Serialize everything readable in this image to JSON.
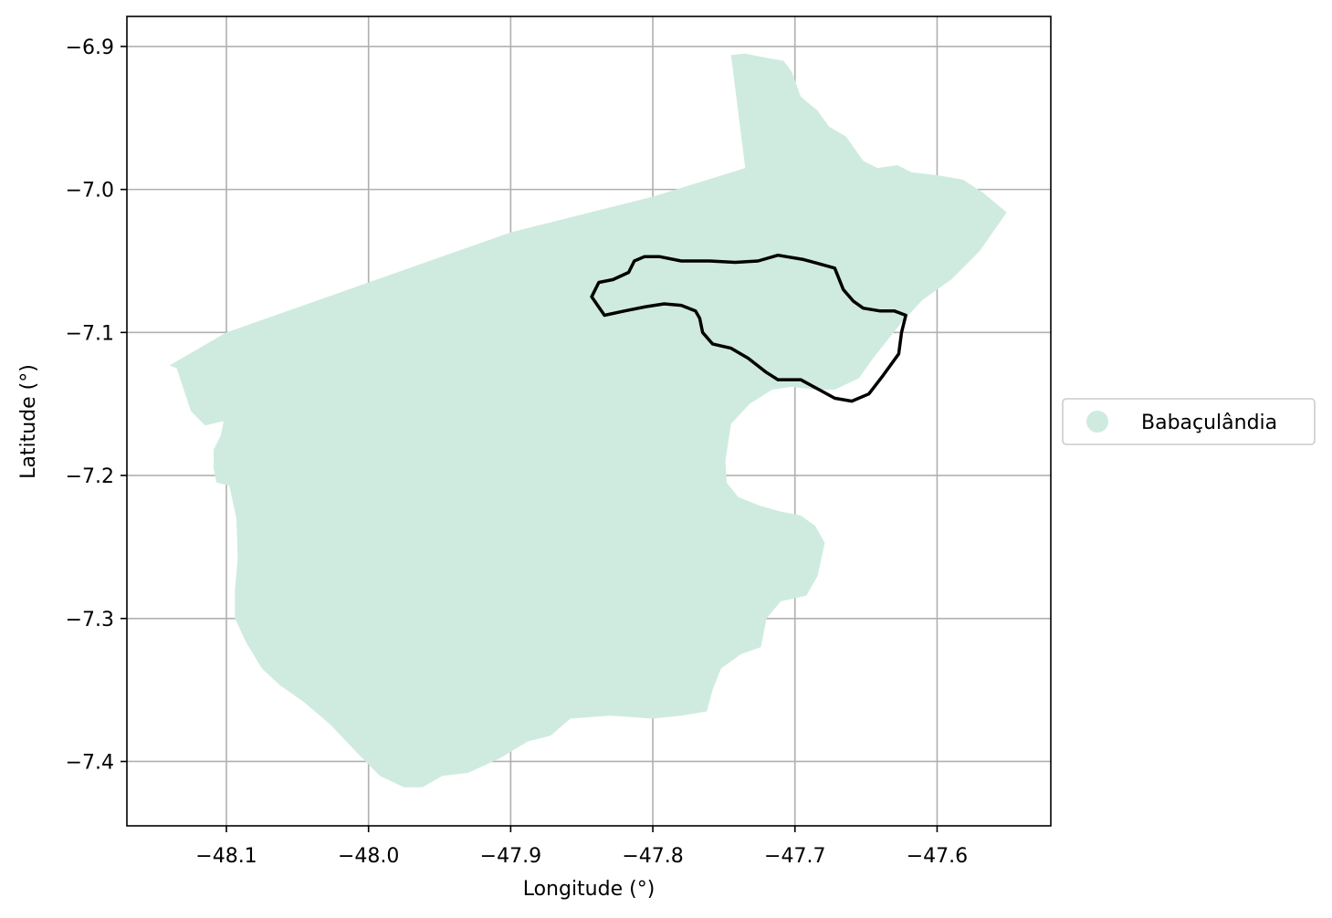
{
  "chart_data": {
    "type": "map",
    "xlabel": "Longitude (°)",
    "ylabel": "Latitude (°)",
    "xlim": [
      -48.17,
      -47.52
    ],
    "ylim": [
      -7.445,
      -6.879
    ],
    "xticks": [
      {
        "value": -48.1,
        "label": "−48.1"
      },
      {
        "value": -48.0,
        "label": "−48.0"
      },
      {
        "value": -47.9,
        "label": "−47.9"
      },
      {
        "value": -47.8,
        "label": "−47.8"
      },
      {
        "value": -47.7,
        "label": "−47.7"
      },
      {
        "value": -47.6,
        "label": "−47.6"
      }
    ],
    "yticks": [
      {
        "value": -6.9,
        "label": "−6.9"
      },
      {
        "value": -7.0,
        "label": "−7.0"
      },
      {
        "value": -7.1,
        "label": "−7.1"
      },
      {
        "value": -7.2,
        "label": "−7.2"
      },
      {
        "value": -7.3,
        "label": "−7.3"
      },
      {
        "value": -7.4,
        "label": "−7.4"
      }
    ],
    "grid": true,
    "legend": {
      "position": "right",
      "entries": [
        {
          "label": "Babaçulândia",
          "color": "#cfebdf"
        }
      ]
    },
    "fill_color": "#cfebdf",
    "outline_color": "#000000",
    "municipality_polygon": [
      [
        -47.745,
        -6.906
      ],
      [
        -47.735,
        -6.905
      ],
      [
        -47.72,
        -6.908
      ],
      [
        -47.708,
        -6.91
      ],
      [
        -47.702,
        -6.918
      ],
      [
        -47.696,
        -6.935
      ],
      [
        -47.684,
        -6.945
      ],
      [
        -47.676,
        -6.956
      ],
      [
        -47.664,
        -6.963
      ],
      [
        -47.652,
        -6.98
      ],
      [
        -47.642,
        -6.985
      ],
      [
        -47.628,
        -6.983
      ],
      [
        -47.618,
        -6.988
      ],
      [
        -47.6,
        -6.99
      ],
      [
        -47.582,
        -6.993
      ],
      [
        -47.568,
        -7.002
      ],
      [
        -47.551,
        -7.016
      ],
      [
        -47.57,
        -7.043
      ],
      [
        -47.59,
        -7.063
      ],
      [
        -47.61,
        -7.077
      ],
      [
        -47.625,
        -7.093
      ],
      [
        -47.645,
        -7.118
      ],
      [
        -47.655,
        -7.132
      ],
      [
        -47.672,
        -7.14
      ],
      [
        -47.687,
        -7.14
      ],
      [
        -47.702,
        -7.138
      ],
      [
        -47.716,
        -7.14
      ],
      [
        -47.732,
        -7.15
      ],
      [
        -47.745,
        -7.164
      ],
      [
        -47.749,
        -7.19
      ],
      [
        -47.748,
        -7.205
      ],
      [
        -47.74,
        -7.215
      ],
      [
        -47.725,
        -7.221
      ],
      [
        -47.711,
        -7.225
      ],
      [
        -47.696,
        -7.228
      ],
      [
        -47.686,
        -7.235
      ],
      [
        -47.679,
        -7.247
      ],
      [
        -47.684,
        -7.27
      ],
      [
        -47.692,
        -7.284
      ],
      [
        -47.71,
        -7.288
      ],
      [
        -47.72,
        -7.3
      ],
      [
        -47.724,
        -7.32
      ],
      [
        -47.738,
        -7.325
      ],
      [
        -47.752,
        -7.335
      ],
      [
        -47.758,
        -7.35
      ],
      [
        -47.762,
        -7.365
      ],
      [
        -47.78,
        -7.368
      ],
      [
        -47.8,
        -7.37
      ],
      [
        -47.83,
        -7.368
      ],
      [
        -47.858,
        -7.37
      ],
      [
        -47.872,
        -7.382
      ],
      [
        -47.888,
        -7.386
      ],
      [
        -47.908,
        -7.398
      ],
      [
        -47.93,
        -7.408
      ],
      [
        -47.948,
        -7.41
      ],
      [
        -47.962,
        -7.418
      ],
      [
        -47.975,
        -7.418
      ],
      [
        -47.992,
        -7.41
      ],
      [
        -48.008,
        -7.394
      ],
      [
        -48.027,
        -7.374
      ],
      [
        -48.046,
        -7.358
      ],
      [
        -48.062,
        -7.347
      ],
      [
        -48.075,
        -7.335
      ],
      [
        -48.086,
        -7.317
      ],
      [
        -48.094,
        -7.3
      ],
      [
        -48.094,
        -7.28
      ],
      [
        -48.092,
        -7.258
      ],
      [
        -48.093,
        -7.23
      ],
      [
        -48.098,
        -7.207
      ],
      [
        -48.107,
        -7.205
      ],
      [
        -48.109,
        -7.195
      ],
      [
        -48.109,
        -7.182
      ],
      [
        -48.104,
        -7.172
      ],
      [
        -48.102,
        -7.162
      ],
      [
        -48.115,
        -7.165
      ],
      [
        -48.125,
        -7.155
      ],
      [
        -48.13,
        -7.14
      ],
      [
        -48.135,
        -7.125
      ],
      [
        -48.14,
        -7.123
      ],
      [
        -48.1,
        -7.1
      ],
      [
        -48.0,
        -7.065
      ],
      [
        -47.9,
        -7.03
      ],
      [
        -47.8,
        -7.005
      ],
      [
        -47.735,
        -6.985
      ],
      [
        -47.745,
        -6.906
      ]
    ],
    "outline_polygon": [
      [
        -47.843,
        -7.075
      ],
      [
        -47.838,
        -7.065
      ],
      [
        -47.828,
        -7.063
      ],
      [
        -47.817,
        -7.058
      ],
      [
        -47.813,
        -7.05
      ],
      [
        -47.806,
        -7.047
      ],
      [
        -47.795,
        -7.047
      ],
      [
        -47.78,
        -7.05
      ],
      [
        -47.76,
        -7.05
      ],
      [
        -47.742,
        -7.051
      ],
      [
        -47.726,
        -7.05
      ],
      [
        -47.712,
        -7.046
      ],
      [
        -47.694,
        -7.049
      ],
      [
        -47.683,
        -7.052
      ],
      [
        -47.672,
        -7.055
      ],
      [
        -47.666,
        -7.07
      ],
      [
        -47.659,
        -7.078
      ],
      [
        -47.652,
        -7.083
      ],
      [
        -47.64,
        -7.085
      ],
      [
        -47.63,
        -7.085
      ],
      [
        -47.622,
        -7.088
      ],
      [
        -47.625,
        -7.1
      ],
      [
        -47.627,
        -7.115
      ],
      [
        -47.638,
        -7.13
      ],
      [
        -47.648,
        -7.143
      ],
      [
        -47.66,
        -7.148
      ],
      [
        -47.672,
        -7.146
      ],
      [
        -47.683,
        -7.14
      ],
      [
        -47.696,
        -7.133
      ],
      [
        -47.712,
        -7.133
      ],
      [
        -47.72,
        -7.128
      ],
      [
        -47.733,
        -7.118
      ],
      [
        -47.745,
        -7.111
      ],
      [
        -47.758,
        -7.108
      ],
      [
        -47.765,
        -7.1
      ],
      [
        -47.767,
        -7.09
      ],
      [
        -47.77,
        -7.085
      ],
      [
        -47.78,
        -7.081
      ],
      [
        -47.792,
        -7.08
      ],
      [
        -47.805,
        -7.082
      ],
      [
        -47.82,
        -7.085
      ],
      [
        -47.834,
        -7.088
      ],
      [
        -47.843,
        -7.075
      ]
    ]
  }
}
